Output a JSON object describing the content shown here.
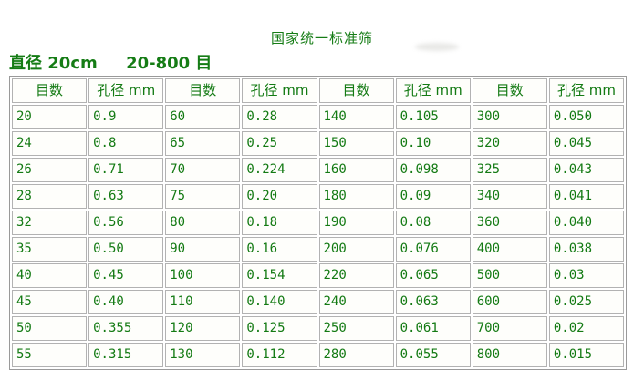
{
  "page": {
    "title": "国家统一标准筛",
    "subtitle": "直径 20cm     20-800 目"
  },
  "colors": {
    "text_green": "#157c15",
    "cell_background": "#fefefb",
    "grid_border": "#b2b2b2",
    "outer_border": "#9a9a9a",
    "page_background": "#ffffff"
  },
  "table": {
    "col_headers": [
      "目数",
      "孔径 mm",
      "目数",
      "孔径 mm",
      "目数",
      "孔径 mm",
      "目数",
      "孔径 mm"
    ],
    "rows": [
      [
        "20",
        "0.9",
        "60",
        "0.28",
        "140",
        "0.105",
        "300",
        "0.050"
      ],
      [
        "24",
        "0.8",
        "65",
        "0.25",
        "150",
        "0.10",
        "320",
        "0.045"
      ],
      [
        "26",
        "0.71",
        "70",
        "0.224",
        "160",
        "0.098",
        "325",
        "0.043"
      ],
      [
        "28",
        "0.63",
        "75",
        "0.20",
        "180",
        "0.09",
        "340",
        "0.041"
      ],
      [
        "32",
        "0.56",
        "80",
        "0.18",
        "190",
        "0.08",
        "360",
        "0.040"
      ],
      [
        "35",
        "0.50",
        "90",
        "0.16",
        "200",
        "0.076",
        "400",
        "0.038"
      ],
      [
        "40",
        "0.45",
        "100",
        "0.154",
        "220",
        "0.065",
        "500",
        "0.03"
      ],
      [
        "45",
        "0.40",
        "110",
        "0.140",
        "240",
        "0.063",
        "600",
        "0.025"
      ],
      [
        "50",
        "0.355",
        "120",
        "0.125",
        "250",
        "0.061",
        "700",
        "0.02"
      ],
      [
        "55",
        "0.315",
        "130",
        "0.112",
        "280",
        "0.055",
        "800",
        "0.015"
      ]
    ]
  }
}
